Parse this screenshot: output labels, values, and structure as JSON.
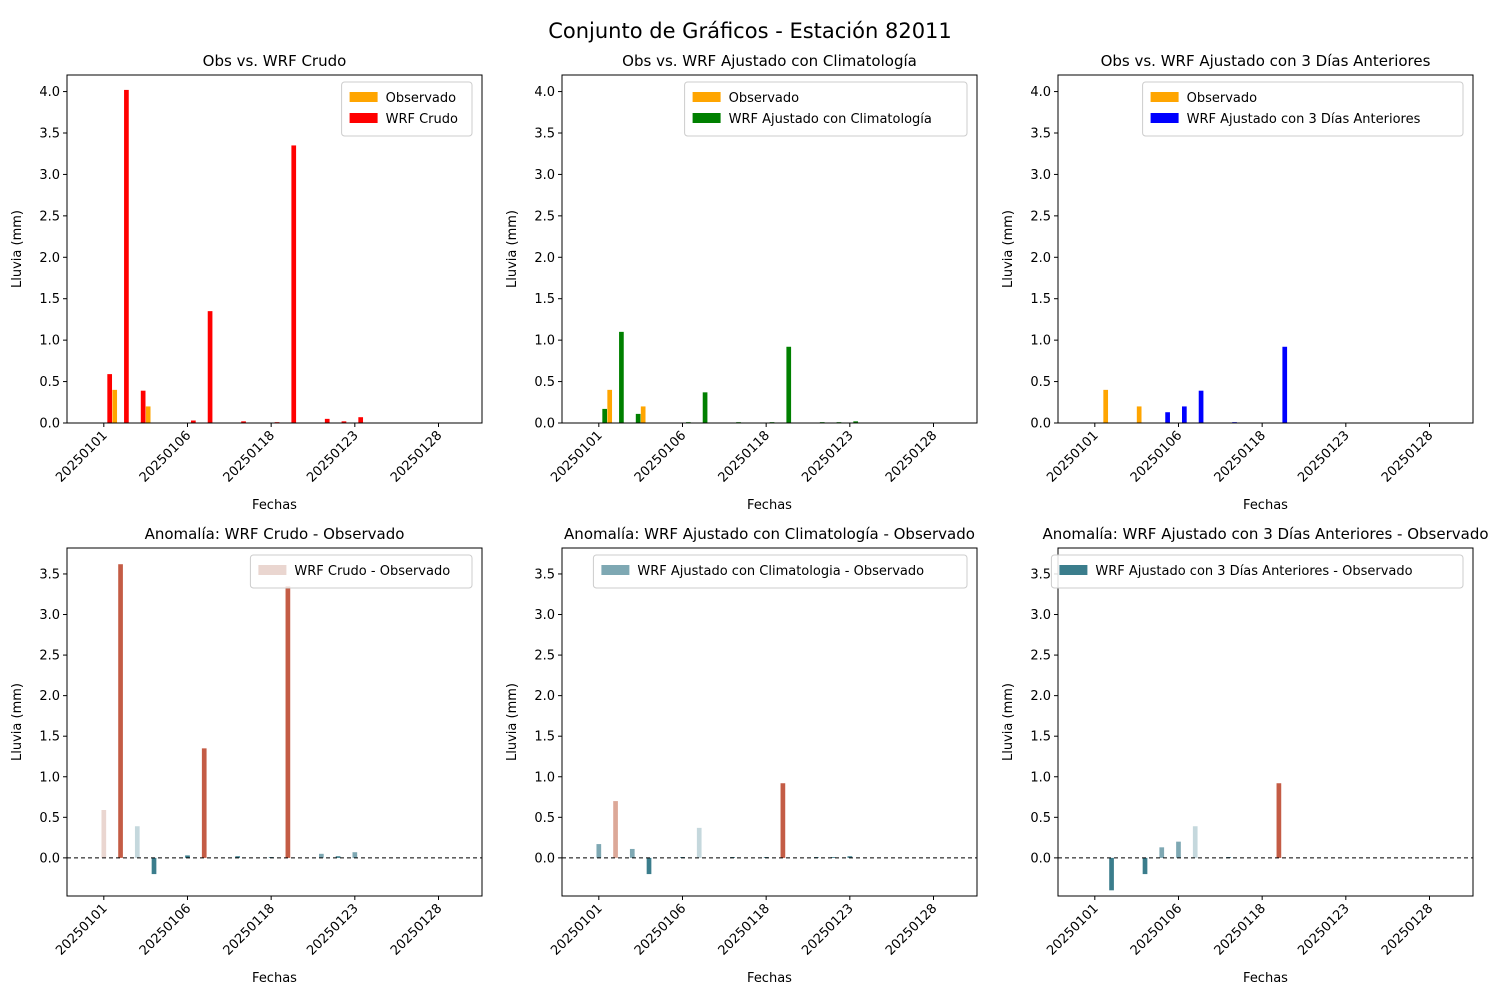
{
  "suptitle": "Conjunto de Gráficos - Estación 82011",
  "colors": {
    "observed": "#ffa500",
    "wrf_raw": "#ff0000",
    "wrf_clim": "#008000",
    "wrf_3days": "#0000ff",
    "anomaly_scale": [
      "#3b7d8c",
      "#7ea8b3",
      "#c5d8dd",
      "#ead6d0",
      "#dca898",
      "#c45c45"
    ],
    "zero_line": "#000000"
  },
  "chart_data": [
    {
      "type": "bar",
      "title": "Obs vs. WRF Crudo",
      "xlabel": "Fechas",
      "ylabel": "Lluvia (mm)",
      "ylim": [
        0,
        4.2
      ],
      "yticks": [
        "0.0",
        "0.5",
        "1.0",
        "1.5",
        "2.0",
        "2.5",
        "3.0",
        "3.5",
        "4.0"
      ],
      "xticklabels": [
        "20250101",
        "20250106",
        "20250118",
        "20250123",
        "20250128"
      ],
      "legend_position": "top-right",
      "x": [
        0,
        1,
        2,
        3,
        4,
        5,
        6,
        7,
        8,
        9,
        10,
        11,
        12,
        13,
        14,
        15,
        16,
        17,
        18,
        19,
        20
      ],
      "series": [
        {
          "name": "Observado",
          "color_key": "observed",
          "values": [
            0,
            0.4,
            0,
            0.2,
            0,
            0,
            0,
            0,
            0,
            0,
            0,
            0,
            0,
            0,
            0,
            0,
            0,
            0,
            0,
            0,
            0
          ]
        },
        {
          "name": "WRF Crudo",
          "color_key": "wrf_raw",
          "values": [
            0.59,
            4.02,
            0.39,
            0,
            0,
            0.03,
            1.35,
            0,
            0.02,
            0,
            0.01,
            3.35,
            0,
            0.05,
            0.02,
            0.07,
            0,
            0,
            0,
            0,
            0
          ]
        }
      ]
    },
    {
      "type": "bar",
      "title": "Obs vs. WRF Ajustado con Climatología",
      "xlabel": "Fechas",
      "ylabel": "Lluvia (mm)",
      "ylim": [
        0,
        4.2
      ],
      "yticks": [
        "0.0",
        "0.5",
        "1.0",
        "1.5",
        "2.0",
        "2.5",
        "3.0",
        "3.5",
        "4.0"
      ],
      "xticklabels": [
        "20250101",
        "20250106",
        "20250118",
        "20250123",
        "20250128"
      ],
      "legend_position": "top-right",
      "x": [
        0,
        1,
        2,
        3,
        4,
        5,
        6,
        7,
        8,
        9,
        10,
        11,
        12,
        13,
        14,
        15,
        16,
        17,
        18,
        19,
        20
      ],
      "series": [
        {
          "name": "Observado",
          "color_key": "observed",
          "values": [
            0,
            0.4,
            0,
            0.2,
            0,
            0,
            0,
            0,
            0,
            0,
            0,
            0,
            0,
            0,
            0,
            0,
            0,
            0,
            0,
            0,
            0
          ]
        },
        {
          "name": "WRF Ajustado con Climatología",
          "color_key": "wrf_clim",
          "values": [
            0.17,
            1.1,
            0.11,
            0,
            0,
            0.01,
            0.37,
            0,
            0.01,
            0,
            0.01,
            0.92,
            0,
            0.01,
            0.01,
            0.02,
            0,
            0,
            0,
            0,
            0
          ]
        }
      ]
    },
    {
      "type": "bar",
      "title": "Obs vs. WRF Ajustado con 3 Días Anteriores",
      "xlabel": "Fechas",
      "ylabel": "Lluvia (mm)",
      "ylim": [
        0,
        4.2
      ],
      "yticks": [
        "0.0",
        "0.5",
        "1.0",
        "1.5",
        "2.0",
        "2.5",
        "3.0",
        "3.5",
        "4.0"
      ],
      "xticklabels": [
        "20250101",
        "20250106",
        "20250118",
        "20250123",
        "20250128"
      ],
      "legend_position": "top-right",
      "x": [
        0,
        1,
        2,
        3,
        4,
        5,
        6,
        7,
        8,
        9,
        10,
        11,
        12,
        13,
        14,
        15,
        16,
        17,
        18,
        19,
        20
      ],
      "series": [
        {
          "name": "Observado",
          "color_key": "observed",
          "values": [
            0,
            0.4,
            0,
            0.2,
            0,
            0,
            0,
            0,
            0,
            0,
            0,
            0,
            0,
            0,
            0,
            0,
            0,
            0,
            0,
            0,
            0
          ]
        },
        {
          "name": "WRF Ajustado con 3 Días Anteriores",
          "color_key": "wrf_3days",
          "values": [
            0,
            0,
            0,
            0,
            0.13,
            0.2,
            0.39,
            0,
            0.01,
            0,
            0,
            0.92,
            0,
            0,
            0,
            0,
            0,
            0,
            0,
            0,
            0
          ]
        }
      ]
    },
    {
      "type": "bar",
      "title": "Anomalía: WRF Crudo - Observado",
      "xlabel": "Fechas",
      "ylabel": "Lluvia (mm)",
      "ylim": [
        -0.47,
        3.82
      ],
      "yticks": [
        "0.0",
        "0.5",
        "1.0",
        "1.5",
        "2.0",
        "2.5",
        "3.0",
        "3.5"
      ],
      "xticklabels": [
        "20250101",
        "20250106",
        "20250118",
        "20250123",
        "20250128"
      ],
      "legend_position": "top-right",
      "zero_line": true,
      "x": [
        0,
        1,
        2,
        3,
        4,
        5,
        6,
        7,
        8,
        9,
        10,
        11,
        12,
        13,
        14,
        15,
        16,
        17,
        18,
        19,
        20
      ],
      "series": [
        {
          "name": "WRF Crudo - Observado",
          "color_key": "anomaly_scale",
          "legend_color_index": 3,
          "values": [
            0.59,
            3.62,
            0.39,
            -0.2,
            0,
            0.03,
            1.35,
            0,
            0.02,
            0,
            0.01,
            3.35,
            0,
            0.05,
            0.02,
            0.07,
            0,
            0,
            0,
            0,
            0
          ]
        }
      ]
    },
    {
      "type": "bar",
      "title": "Anomalía: WRF Ajustado con Climatología - Observado",
      "xlabel": "Fechas",
      "ylabel": "Lluvia (mm)",
      "ylim": [
        -0.47,
        3.82
      ],
      "yticks": [
        "0.0",
        "0.5",
        "1.0",
        "1.5",
        "2.0",
        "2.5",
        "3.0",
        "3.5"
      ],
      "xticklabels": [
        "20250101",
        "20250106",
        "20250118",
        "20250123",
        "20250128"
      ],
      "legend_position": "top-right",
      "zero_line": true,
      "x": [
        0,
        1,
        2,
        3,
        4,
        5,
        6,
        7,
        8,
        9,
        10,
        11,
        12,
        13,
        14,
        15,
        16,
        17,
        18,
        19,
        20
      ],
      "series": [
        {
          "name": "WRF Ajustado con Climatologia - Observado",
          "color_key": "anomaly_scale",
          "legend_color_index": 1,
          "values": [
            0.17,
            0.7,
            0.11,
            -0.2,
            0,
            0.01,
            0.37,
            0,
            0.01,
            0,
            0.01,
            0.92,
            0,
            0.01,
            0.01,
            0.02,
            0,
            0,
            0,
            0,
            0
          ]
        }
      ]
    },
    {
      "type": "bar",
      "title": "Anomalía: WRF Ajustado con 3 Días Anteriores - Observado",
      "xlabel": "Fechas",
      "ylabel": "Lluvia (mm)",
      "ylim": [
        -0.47,
        3.82
      ],
      "yticks": [
        "0.0",
        "0.5",
        "1.0",
        "1.5",
        "2.0",
        "2.5",
        "3.0",
        "3.5"
      ],
      "xticklabels": [
        "20250101",
        "20250106",
        "20250118",
        "20250123",
        "20250128"
      ],
      "legend_position": "top-right",
      "zero_line": true,
      "x": [
        0,
        1,
        2,
        3,
        4,
        5,
        6,
        7,
        8,
        9,
        10,
        11,
        12,
        13,
        14,
        15,
        16,
        17,
        18,
        19,
        20
      ],
      "series": [
        {
          "name": "WRF Ajustado con 3 Días Anteriores - Observado",
          "color_key": "anomaly_scale",
          "legend_color_index": 0,
          "values": [
            0,
            -0.4,
            0,
            -0.2,
            0.13,
            0.2,
            0.39,
            0,
            0.01,
            0,
            0,
            0.92,
            0,
            0,
            0,
            0,
            0,
            0,
            0,
            0,
            0
          ]
        }
      ]
    }
  ]
}
